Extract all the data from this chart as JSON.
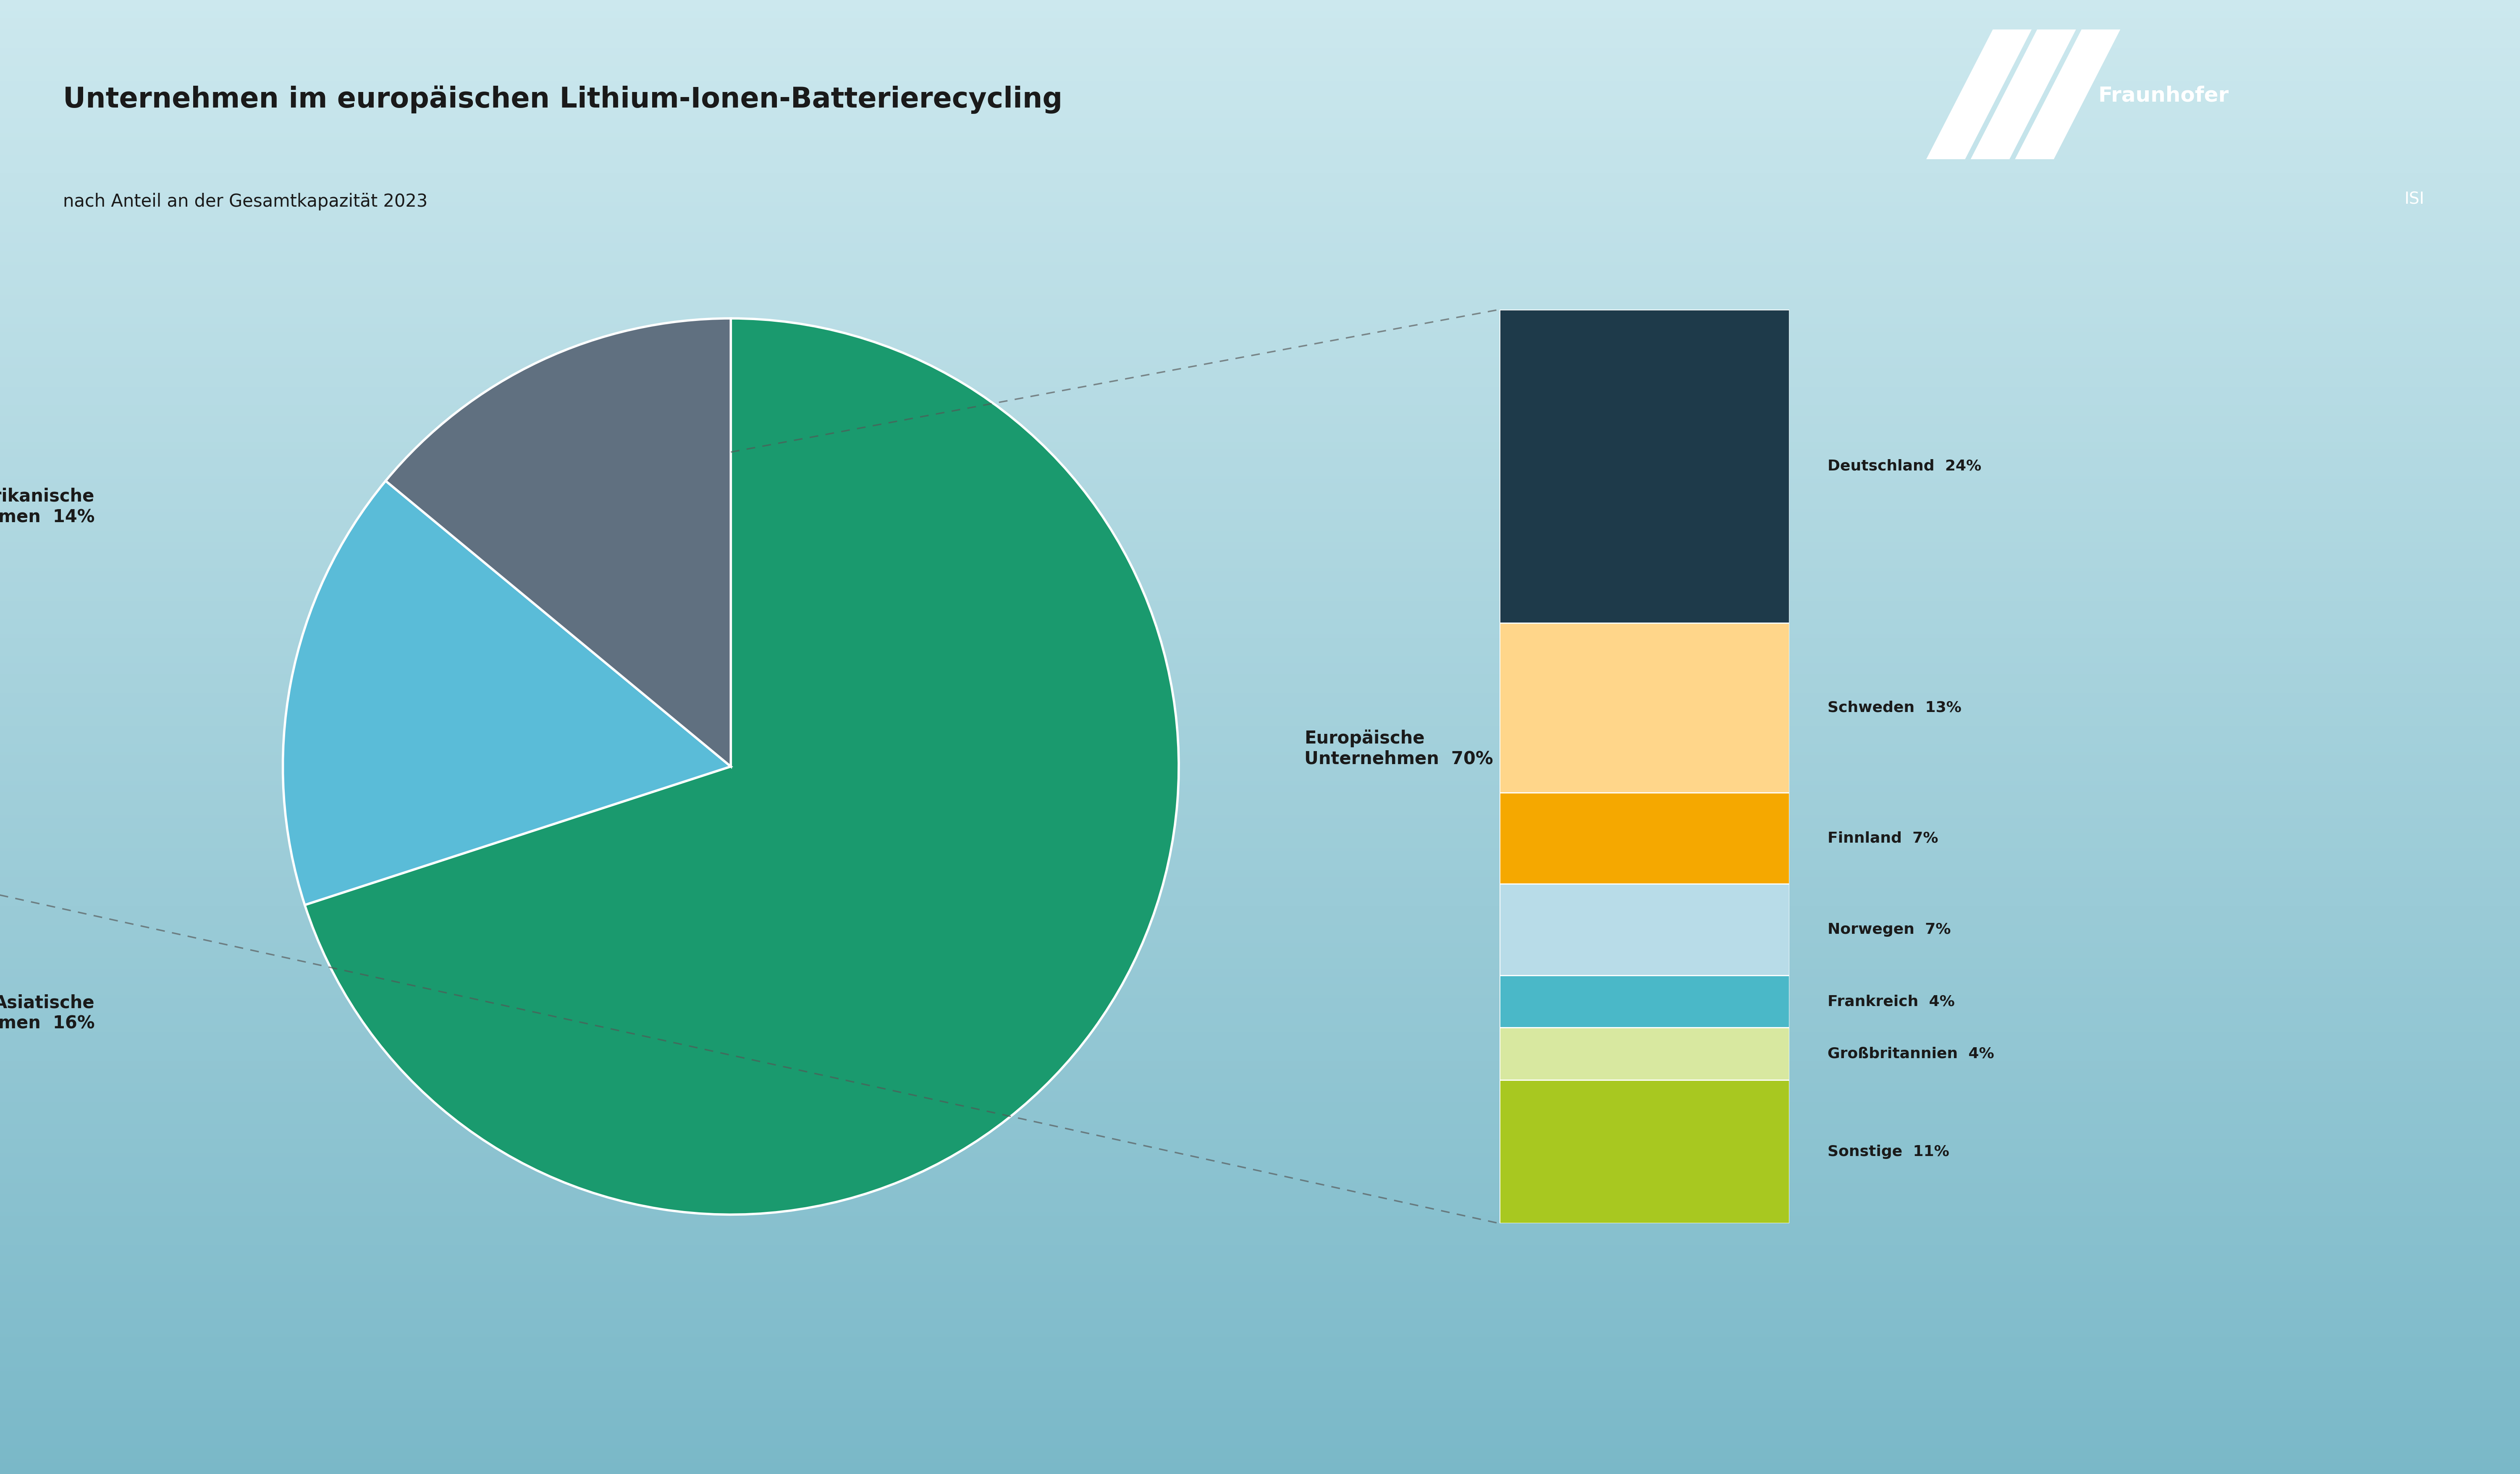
{
  "title": "Unternehmen im europäischen Lithium-Ionen-Batterierecycling",
  "subtitle": "nach Anteil an der Gesamtkapazität 2023",
  "pie_labels": [
    "Europäische\nUnternehmen",
    "Asiatische\nUnternehmen",
    "Amerikanische\nUnternehmen"
  ],
  "pie_values": [
    70,
    16,
    14
  ],
  "pie_colors": [
    "#1a9a6e",
    "#5abcd8",
    "#607080"
  ],
  "bar_labels": [
    "Deutschland",
    "Schweden",
    "Finnland",
    "Norwegen",
    "Frankreich",
    "Großbritannien",
    "Sonstige"
  ],
  "bar_values": [
    24,
    13,
    7,
    7,
    4,
    4,
    11
  ],
  "bar_colors": [
    "#1e3a4a",
    "#ffd68a",
    "#f5a800",
    "#b8dce8",
    "#4ab8c8",
    "#d8e8a0",
    "#a8c820"
  ],
  "bg_color_top": "#cce8ee",
  "bg_color_bottom": "#7ab8c8",
  "text_color": "#1a1a1a",
  "figsize": [
    60.01,
    35.09
  ],
  "dpi": 100
}
